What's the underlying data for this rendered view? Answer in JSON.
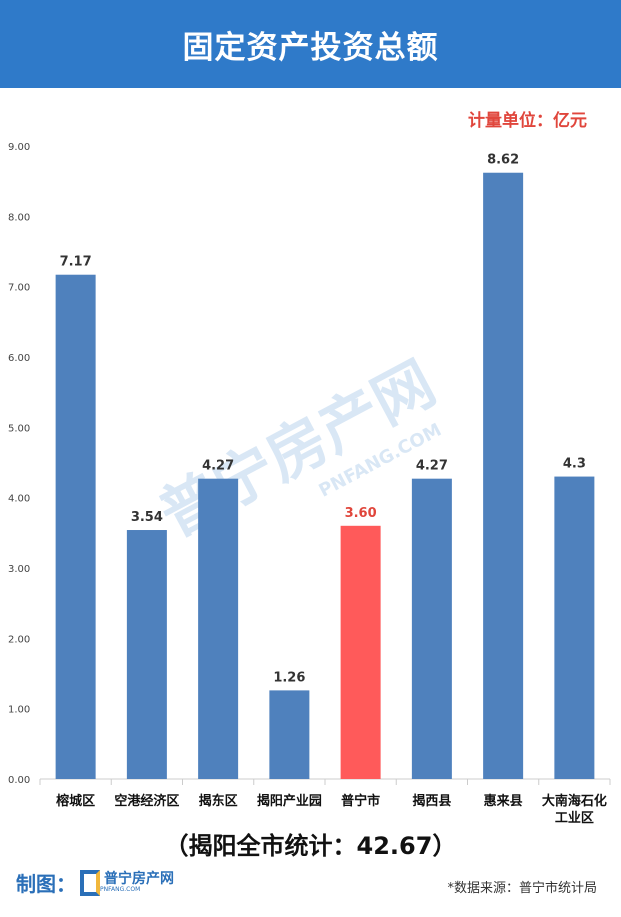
{
  "header": {
    "title": "固定资产投资总额"
  },
  "unit_label": "计量单位：亿元",
  "chart_data": {
    "type": "bar",
    "title": "固定资产投资总额",
    "categories": [
      "榕城区",
      "空港经济区",
      "揭东区",
      "揭阳产业园",
      "普宁市",
      "揭西县",
      "惠来县",
      "大南海石化工业区"
    ],
    "category_lines": [
      [
        "榕城区"
      ],
      [
        "空港经济区"
      ],
      [
        "揭东区"
      ],
      [
        "揭阳产业园"
      ],
      [
        "普宁市"
      ],
      [
        "揭西县"
      ],
      [
        "惠来县"
      ],
      [
        "大南海石化",
        "工业区"
      ]
    ],
    "values": [
      7.17,
      3.54,
      4.27,
      1.26,
      3.6,
      4.27,
      8.62,
      4.3
    ],
    "data_labels": [
      "7.17",
      "3.54",
      "4.27",
      "1.26",
      "3.60",
      "4.27",
      "8.62",
      "4.3"
    ],
    "ylim": [
      0,
      9
    ],
    "yticks": [
      "0.00",
      "1.00",
      "2.00",
      "3.00",
      "4.00",
      "5.00",
      "6.00",
      "7.00",
      "8.00",
      "9.00"
    ],
    "grid": false,
    "bar_color": "#4f81bd",
    "highlight_color": "#ff5a5a",
    "highlight_index": 4,
    "label_color": "#333333",
    "highlight_label_color": "#e0463c"
  },
  "total": "（揭阳全市统计：42.67）",
  "footer": {
    "maker_label": "制图：",
    "logo_name": "普宁房产网",
    "logo_sub": "PNFANG.COM",
    "source": "*数据来源：普宁市统计局"
  },
  "watermark": {
    "name": "普宁房产网",
    "sub": "PNFANG.COM"
  }
}
